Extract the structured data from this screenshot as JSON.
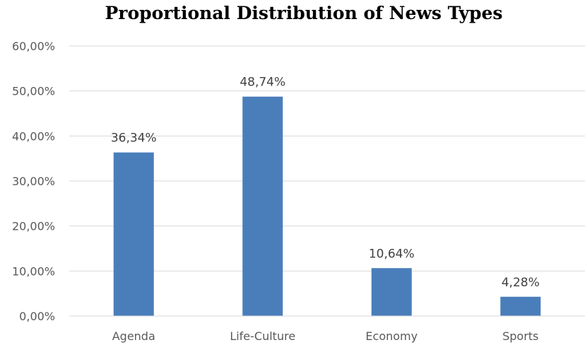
{
  "chart_data": {
    "type": "bar",
    "title": "Proportional Distribution of News Types",
    "xlabel": "",
    "ylabel": "",
    "categories": [
      "Agenda",
      "Life-Culture",
      "Economy",
      "Sports"
    ],
    "values": [
      36.34,
      48.74,
      10.64,
      4.28
    ],
    "data_labels": [
      "36,34%",
      "48,74%",
      "10,64%",
      "4,28%"
    ],
    "ylim": [
      0,
      60
    ],
    "y_ticks": [
      0,
      10,
      20,
      30,
      40,
      50,
      60
    ],
    "y_tick_labels": [
      "0,00%",
      "10,00%",
      "20,00%",
      "30,00%",
      "40,00%",
      "50,00%",
      "60,00%"
    ],
    "grid": true,
    "legend": "none",
    "bar_color": "#4a7ebb",
    "grid_color": "#d9d9d9"
  }
}
